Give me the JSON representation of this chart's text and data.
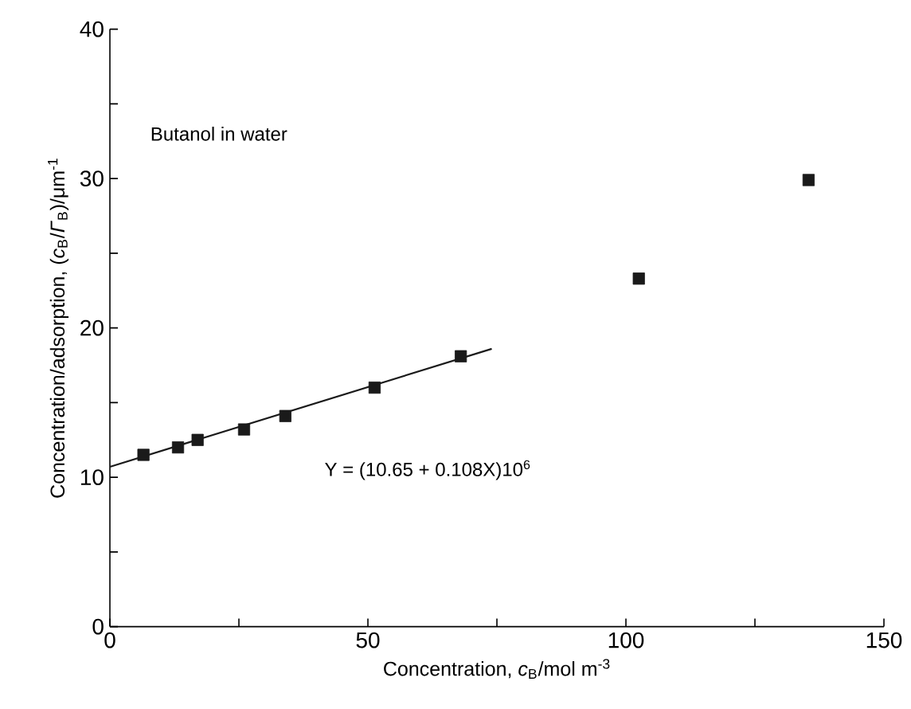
{
  "chart_data": {
    "type": "scatter",
    "xlabel": "Concentration, *c*$_{B}$/mol m$^{-3}$",
    "ylabel": "Concentration/adsorption, (*c*$_{B}$/*Γ*$_{B}$)/μm$^{-1}$",
    "annotations": [
      "Butanol in water",
      "Y = (10.65 + 0.108X)10$^{6}$"
    ],
    "series": [
      {
        "color": "#1a1a1a",
        "x": [
          6.5,
          13.2,
          17.0,
          26.0,
          34.0,
          51.3,
          68.0,
          102.5,
          135.4
        ],
        "values": [
          11.5,
          12.0,
          12.5,
          13.2,
          14.1,
          16.0,
          18.1,
          23.3,
          29.9
        ]
      },
      {
        "type": "line",
        "color": "#1a1a1a",
        "x": [
          0,
          74
        ],
        "values": [
          10.7,
          18.6
        ],
        "marker": "none",
        "line_style": "solid"
      }
    ],
    "marker": "square",
    "xlim": [
      0,
      150
    ],
    "ylim": [
      0,
      40
    ],
    "xticks": [
      0,
      {
        "value": 25,
        "label": null
      },
      50,
      {
        "value": 75,
        "label": null
      },
      100,
      {
        "value": 125,
        "label": null
      },
      150
    ],
    "yticks": [
      0,
      {
        "value": 5,
        "label": null
      },
      10,
      {
        "value": 15,
        "label": null
      },
      20,
      {
        "value": 25,
        "label": null
      },
      30,
      {
        "value": 35,
        "label": null
      },
      40
    ]
  }
}
